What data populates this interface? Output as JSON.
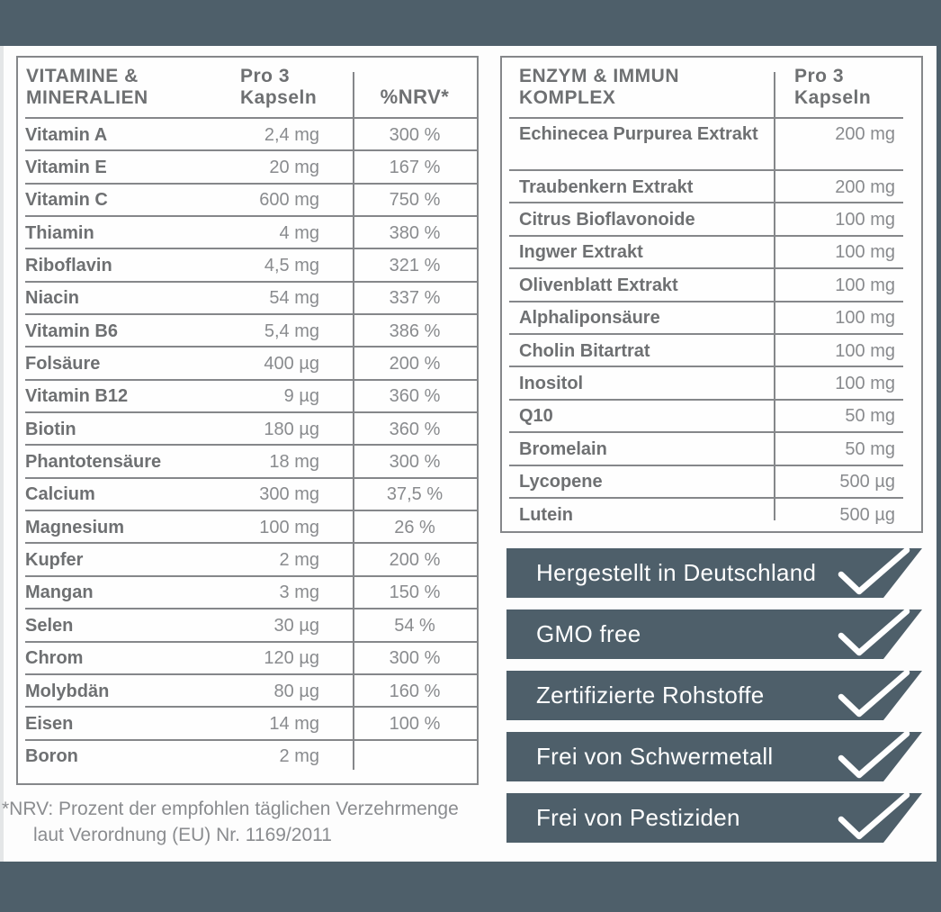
{
  "colors": {
    "frame_dark": "#4e5f6a",
    "table_line": "#85878a",
    "label_text": "#6e7072",
    "value_text": "#898b8e",
    "badge_text": "#ffffff"
  },
  "left_table": {
    "title_line1": "VITAMINE &",
    "title_line2": "MINERALIEN",
    "col2_line1": "Pro 3",
    "col2_line2": "Kapseln",
    "col3": "%NRV*",
    "rows": [
      {
        "name": "Vitamin A",
        "amount": "2,4 mg",
        "nrv": "300 %"
      },
      {
        "name": "Vitamin E",
        "amount": "20 mg",
        "nrv": "167 %"
      },
      {
        "name": "Vitamin C",
        "amount": "600 mg",
        "nrv": "750 %"
      },
      {
        "name": "Thiamin",
        "amount": "4 mg",
        "nrv": "380 %"
      },
      {
        "name": "Riboflavin",
        "amount": "4,5 mg",
        "nrv": "321 %"
      },
      {
        "name": "Niacin",
        "amount": "54 mg",
        "nrv": "337 %"
      },
      {
        "name": "Vitamin B6",
        "amount": "5,4 mg",
        "nrv": "386 %"
      },
      {
        "name": "Folsäure",
        "amount": "400 µg",
        "nrv": "200 %"
      },
      {
        "name": "Vitamin B12",
        "amount": "9 µg",
        "nrv": "360 %"
      },
      {
        "name": "Biotin",
        "amount": "180 µg",
        "nrv": "360 %"
      },
      {
        "name": "Phantotensäure",
        "amount": "18 mg",
        "nrv": "300 %"
      },
      {
        "name": "Calcium",
        "amount": "300 mg",
        "nrv": "37,5 %"
      },
      {
        "name": "Magnesium",
        "amount": "100 mg",
        "nrv": "26 %"
      },
      {
        "name": "Kupfer",
        "amount": "2 mg",
        "nrv": "200 %"
      },
      {
        "name": "Mangan",
        "amount": "3 mg",
        "nrv": "150 %"
      },
      {
        "name": "Selen",
        "amount": "30 µg",
        "nrv": "54 %"
      },
      {
        "name": "Chrom",
        "amount": "120 µg",
        "nrv": "300 %"
      },
      {
        "name": "Molybdän",
        "amount": "80 µg",
        "nrv": "160 %"
      },
      {
        "name": "Eisen",
        "amount": "14 mg",
        "nrv": "100 %"
      },
      {
        "name": "Boron",
        "amount": "2 mg",
        "nrv": ""
      }
    ]
  },
  "right_table": {
    "title_line1": "ENZYM & IMMUN",
    "title_line2": "KOMPLEX",
    "col2_line1": "Pro 3",
    "col2_line2": "Kapseln",
    "rows": [
      {
        "name": "Echinecea Purpurea Extrakt",
        "amount": "200 mg"
      },
      {
        "name": "Traubenkern Extrakt",
        "amount": "200 mg"
      },
      {
        "name": "Citrus Bioflavonoide",
        "amount": "100 mg"
      },
      {
        "name": "Ingwer Extrakt",
        "amount": "100 mg"
      },
      {
        "name": "Olivenblatt Extrakt",
        "amount": "100 mg"
      },
      {
        "name": "Alphaliponsäure",
        "amount": "100 mg"
      },
      {
        "name": "Cholin Bitartrat",
        "amount": "100 mg"
      },
      {
        "name": "Inositol",
        "amount": "100 mg"
      },
      {
        "name": "Q10",
        "amount": "50 mg"
      },
      {
        "name": "Bromelain",
        "amount": "50 mg"
      },
      {
        "name": "Lycopene",
        "amount": "500 µg"
      },
      {
        "name": "Lutein",
        "amount": "500 µg"
      }
    ]
  },
  "badges": [
    {
      "label": "Hergestellt in Deutschland"
    },
    {
      "label": "GMO free"
    },
    {
      "label": "Zertifizierte Rohstoffe"
    },
    {
      "label": "Frei von Schwermetall"
    },
    {
      "label": "Frei von Pestiziden"
    }
  ],
  "footnote": {
    "line1": "*NRV: Prozent der empfohlen täglichen Verzehrmenge",
    "line2": "laut Verordnung (EU) Nr. 1169/2011"
  }
}
